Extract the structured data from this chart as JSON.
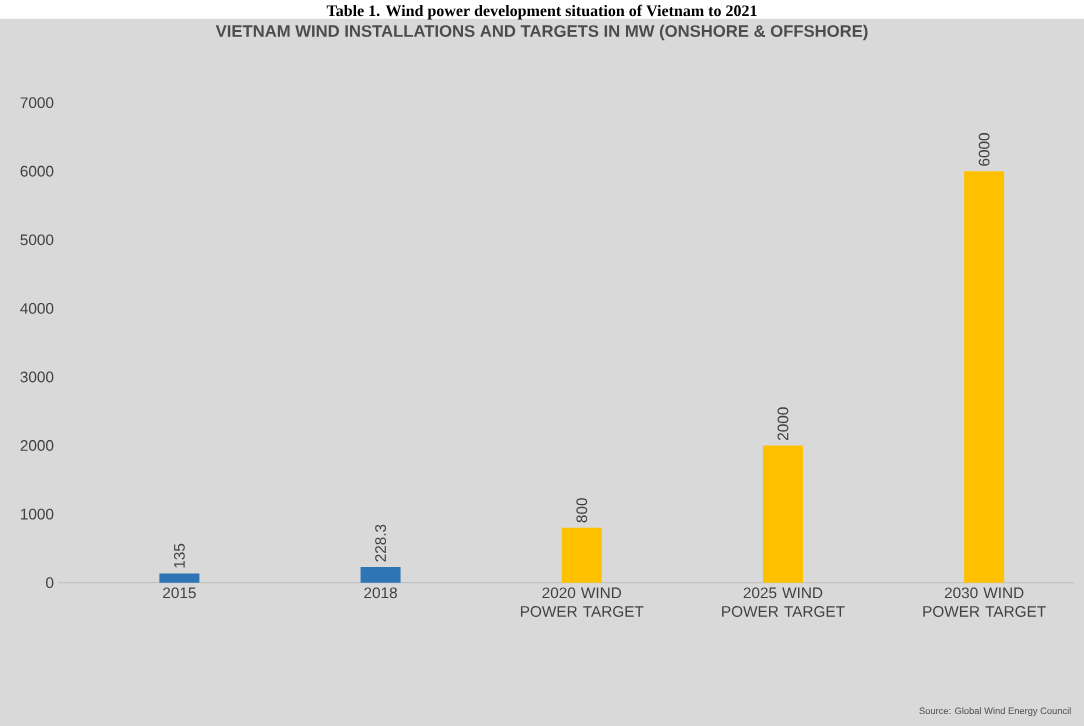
{
  "chart_data": {
    "type": "bar",
    "title": "Table 1. Wind power development situation of Vietnam to 2021",
    "subtitle": "VIETNAM WIND INSTALLATIONS AND TARGETS IN MW (ONSHORE & OFFSHORE)",
    "categories": [
      "2015",
      "2018",
      "2020 WIND POWER TARGET",
      "2025 WIND POWER TARGET",
      "2030 WIND POWER TARGET"
    ],
    "values": [
      135,
      228.3,
      800,
      2000,
      6000
    ],
    "colors": [
      "#2e75b6",
      "#2e75b6",
      "#ffc000",
      "#ffc000",
      "#ffc000"
    ],
    "data_labels": true,
    "ylim": [
      0,
      7000
    ],
    "yticks": [
      0,
      1000,
      2000,
      3000,
      4000,
      5000,
      6000,
      7000
    ],
    "annotations": [
      "Source: Global Wind Energy Council"
    ]
  }
}
